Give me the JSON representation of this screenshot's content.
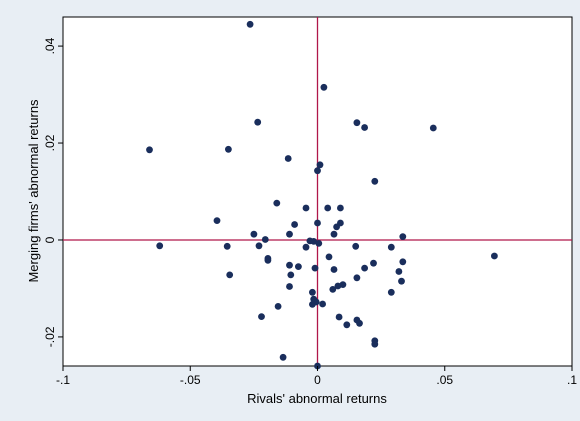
{
  "chart_data": {
    "type": "scatter",
    "title": "",
    "xlabel": "Rivals' abnormal returns",
    "ylabel": "Merging firms' abnormal returns",
    "xlim": [
      -0.1,
      0.1
    ],
    "ylim": [
      -0.026,
      0.046
    ],
    "xticks": [
      -0.1,
      -0.05,
      0,
      0.05,
      0.1
    ],
    "xtick_labels": [
      "-.1",
      "-.05",
      "0",
      ".05",
      ".1"
    ],
    "yticks": [
      -0.02,
      0,
      0.02,
      0.04
    ],
    "ytick_labels": [
      "-.02",
      "0",
      ".02",
      ".04"
    ],
    "reference_lines": {
      "x": 0,
      "y": 0,
      "color": "#b0174a"
    },
    "marker_color": "#1a2e5c",
    "background_color": "#e8eef4",
    "plot_background": "#ffffff",
    "grid": false,
    "legend": false,
    "points": [
      [
        -0.0265,
        0.0445
      ],
      [
        0.0025,
        0.0315
      ],
      [
        -0.0235,
        0.0243
      ],
      [
        0.0155,
        0.0242
      ],
      [
        0.0185,
        0.0232
      ],
      [
        0.0455,
        0.0231
      ],
      [
        -0.066,
        0.0186
      ],
      [
        -0.035,
        0.0187
      ],
      [
        -0.0115,
        0.0168
      ],
      [
        0.001,
        0.0155
      ],
      [
        0.0,
        0.0143
      ],
      [
        0.0225,
        0.0121
      ],
      [
        -0.016,
        0.0076
      ],
      [
        -0.0045,
        0.0066
      ],
      [
        0.004,
        0.0066
      ],
      [
        0.009,
        0.0066
      ],
      [
        -0.0395,
        0.004
      ],
      [
        -0.009,
        0.0032
      ],
      [
        0.0,
        0.0035
      ],
      [
        0.009,
        0.0035
      ],
      [
        0.0075,
        0.0027
      ],
      [
        -0.025,
        0.0012
      ],
      [
        -0.011,
        0.0012
      ],
      [
        0.0065,
        0.0012
      ],
      [
        0.0335,
        0.0007
      ],
      [
        -0.0205,
        0.0001
      ],
      [
        -0.003,
        -0.0002
      ],
      [
        -0.0015,
        -0.0003
      ],
      [
        0.0005,
        -0.0007
      ],
      [
        -0.062,
        -0.0012
      ],
      [
        -0.0355,
        -0.0013
      ],
      [
        -0.023,
        -0.0012
      ],
      [
        -0.0045,
        -0.0015
      ],
      [
        0.015,
        -0.0013
      ],
      [
        0.029,
        -0.0015
      ],
      [
        0.0045,
        -0.0035
      ],
      [
        -0.0195,
        -0.0042
      ],
      [
        -0.0195,
        -0.0038
      ],
      [
        0.022,
        -0.0048
      ],
      [
        0.0335,
        -0.0045
      ],
      [
        -0.011,
        -0.0052
      ],
      [
        -0.0075,
        -0.0055
      ],
      [
        -0.001,
        -0.0058
      ],
      [
        0.0065,
        -0.0061
      ],
      [
        0.0185,
        -0.0058
      ],
      [
        0.032,
        -0.0065
      ],
      [
        -0.0345,
        -0.0072
      ],
      [
        -0.0105,
        -0.0072
      ],
      [
        0.0155,
        -0.0078
      ],
      [
        0.033,
        -0.0085
      ],
      [
        0.01,
        -0.0092
      ],
      [
        0.008,
        -0.0095
      ],
      [
        -0.011,
        -0.0096
      ],
      [
        0.006,
        -0.0102
      ],
      [
        0.029,
        -0.0108
      ],
      [
        -0.002,
        -0.0108
      ],
      [
        -0.0015,
        -0.0122
      ],
      [
        -0.0005,
        -0.0128
      ],
      [
        -0.002,
        -0.0133
      ],
      [
        0.002,
        -0.0132
      ],
      [
        -0.0155,
        -0.0137
      ],
      [
        0.0085,
        -0.0159
      ],
      [
        0.0155,
        -0.0165
      ],
      [
        0.0165,
        -0.0172
      ],
      [
        0.0115,
        -0.0175
      ],
      [
        -0.022,
        -0.0158
      ],
      [
        0.0225,
        -0.0208
      ],
      [
        0.0225,
        -0.0215
      ],
      [
        -0.0135,
        -0.0242
      ],
      [
        0.0,
        -0.026
      ],
      [
        0.0695,
        -0.0033
      ]
    ]
  }
}
